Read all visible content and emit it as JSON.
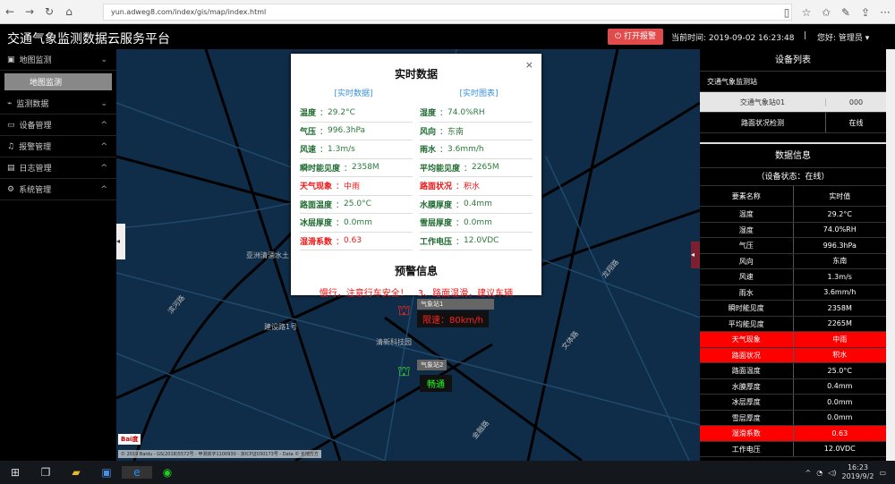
{
  "browser": {
    "url": "yun.adweg8.com/index/gis/map/index.html"
  },
  "header": {
    "title": "交通气象监测数据云服务平台",
    "alarm_button": "打开报警",
    "time_label": "当前时间: 2019-09-02 16:23:48",
    "separator": "|",
    "user_label": "您好: 管理员"
  },
  "sidebar": {
    "items": [
      {
        "label": "地图监测",
        "icon": "map-icon",
        "expanded": true,
        "sub": [
          "地图监测"
        ]
      },
      {
        "label": "监测数据",
        "icon": "chart-icon"
      },
      {
        "label": "设备管理",
        "icon": "device-icon"
      },
      {
        "label": "报警管理",
        "icon": "bell-icon"
      },
      {
        "label": "日志管理",
        "icon": "log-icon"
      },
      {
        "label": "系统管理",
        "icon": "gear-icon"
      }
    ]
  },
  "popup": {
    "title": "实时数据",
    "tabs": [
      "[实时数据]",
      "[实时图表]"
    ],
    "fields": [
      {
        "label": "温度",
        "value": "29.2°C"
      },
      {
        "label": "湿度",
        "value": "74.0%RH"
      },
      {
        "label": "气压",
        "value": "996.3hPa"
      },
      {
        "label": "风向",
        "value": "东南"
      },
      {
        "label": "风速",
        "value": "1.3m/s"
      },
      {
        "label": "雨水",
        "value": "3.6mm/h"
      },
      {
        "label": "瞬时能见度",
        "value": "2358M"
      },
      {
        "label": "平均能见度",
        "value": "2265M"
      },
      {
        "label": "天气现象",
        "value": "中雨",
        "alert": true
      },
      {
        "label": "路面状况",
        "value": "积水",
        "alert": true
      },
      {
        "label": "路面温度",
        "value": "25.0°C"
      },
      {
        "label": "水膜厚度",
        "value": "0.4mm"
      },
      {
        "label": "冰层厚度",
        "value": "0.0mm"
      },
      {
        "label": "雪层厚度",
        "value": "0.0mm"
      },
      {
        "label": "湿滑系数",
        "value": "0.63",
        "alert": true
      },
      {
        "label": "工作电压",
        "value": "12.0VDC"
      }
    ],
    "warning_title": "预警信息",
    "warning_text": "慢行，注意行车安全！　3、路面湿滑，建议车辆"
  },
  "map": {
    "labels": [
      "亚洲清涌水土",
      "滨河路",
      "建设路1号",
      "清新科技园",
      "龙翔路",
      "文体路",
      "金融路"
    ],
    "markers": [
      {
        "name": "气象站1",
        "speed_label": "限速：80km/h",
        "status": "alarm"
      },
      {
        "name": "气象站2",
        "speed_label": "畅通",
        "status": "normal"
      }
    ],
    "scale": "© 2019 Baidu - GS(2018)5572号 - 甲测资字1100930 - 京ICP证030173号 - Data © 长地万方"
  },
  "devices": {
    "title": "设备列表",
    "group": "交通气象监测站",
    "rows": [
      {
        "name": "交通气象站01",
        "value": "000",
        "selected": true
      },
      {
        "name": "路面状况检测",
        "value": "在线"
      }
    ]
  },
  "data_info": {
    "title": "数据信息",
    "status": "（设备状态：在线）",
    "columns": [
      "要素名称",
      "实时值"
    ],
    "rows": [
      {
        "name": "温度",
        "value": "29.2°C"
      },
      {
        "name": "湿度",
        "value": "74.0%RH"
      },
      {
        "name": "气压",
        "value": "996.3hPa"
      },
      {
        "name": "风向",
        "value": "东南"
      },
      {
        "name": "风速",
        "value": "1.3m/s"
      },
      {
        "name": "雨水",
        "value": "3.6mm/h"
      },
      {
        "name": "瞬时能见度",
        "value": "2358M"
      },
      {
        "name": "平均能见度",
        "value": "2265M"
      },
      {
        "name": "天气现象",
        "value": "中雨",
        "alert": true
      },
      {
        "name": "路面状况",
        "value": "积水",
        "alert": true
      },
      {
        "name": "路面温度",
        "value": "25.0°C"
      },
      {
        "name": "水膜厚度",
        "value": "0.4mm"
      },
      {
        "name": "冰层厚度",
        "value": "0.0mm"
      },
      {
        "name": "雪层厚度",
        "value": "0.0mm"
      },
      {
        "name": "湿滑系数",
        "value": "0.63",
        "alert": true
      },
      {
        "name": "工作电压",
        "value": "12.0VDC"
      }
    ]
  },
  "taskbar": {
    "time": "16:23",
    "date": "2019/9/2"
  },
  "colors": {
    "alert": "#ff0000",
    "map": "#0f2d48",
    "accent": "#e24b4b",
    "green": "#2a7a3a"
  }
}
